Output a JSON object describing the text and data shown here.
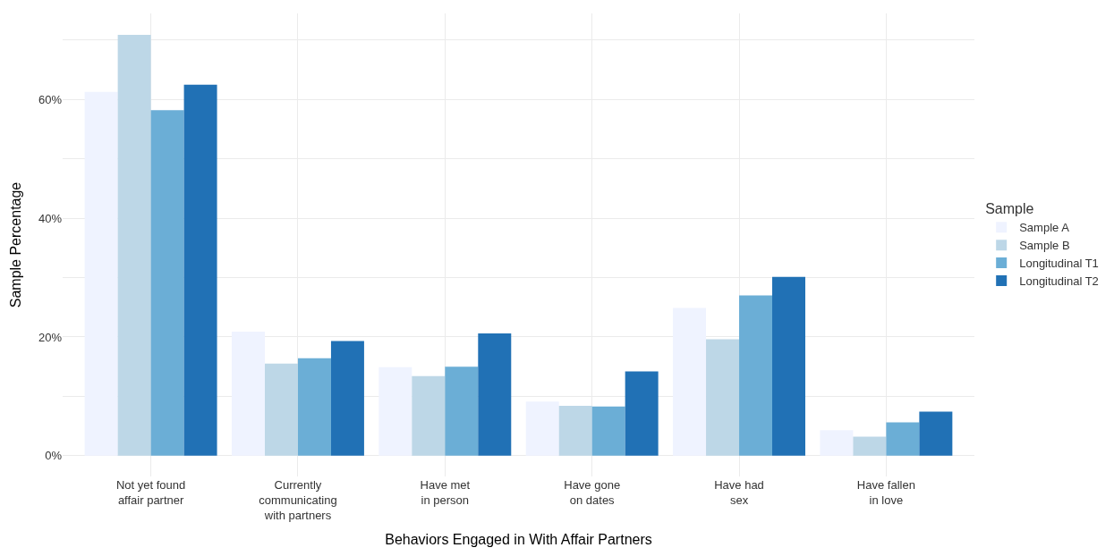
{
  "chart_data": {
    "type": "bar",
    "xlabel": "Behaviors Engaged in With Affair Partners",
    "ylabel": "Sample Percentage",
    "legend_title": "Sample",
    "categories": [
      "Not yet found\naffair partner",
      "Currently\ncommunicating\nwith partners",
      "Have met\nin person",
      "Have gone\non dates",
      "Have had\nsex",
      "Have fallen\nin love"
    ],
    "series": [
      {
        "name": "Sample A",
        "color": "#eff3ff",
        "values": [
          61.3,
          20.9,
          14.9,
          9.1,
          24.9,
          4.3
        ]
      },
      {
        "name": "Sample B",
        "color": "#bdd7e7",
        "values": [
          70.9,
          15.5,
          13.4,
          8.4,
          19.6,
          3.2
        ]
      },
      {
        "name": "Longitudinal T1",
        "color": "#6baed6",
        "values": [
          58.2,
          16.4,
          15.0,
          8.3,
          27.0,
          5.6
        ]
      },
      {
        "name": "Longitudinal T2",
        "color": "#2171b5",
        "values": [
          62.5,
          19.3,
          20.6,
          14.2,
          30.1,
          7.4
        ]
      }
    ],
    "ylim": [
      -3.5,
      74.5
    ],
    "yticks": [
      {
        "value": 0,
        "label": "0%"
      },
      {
        "value": 10,
        "label": null
      },
      {
        "value": 20,
        "label": "20%"
      },
      {
        "value": 30,
        "label": null
      },
      {
        "value": 40,
        "label": "40%"
      },
      {
        "value": 50,
        "label": null
      },
      {
        "value": 60,
        "label": "60%"
      },
      {
        "value": 70,
        "label": null
      }
    ],
    "grid": true,
    "legend": "right"
  }
}
